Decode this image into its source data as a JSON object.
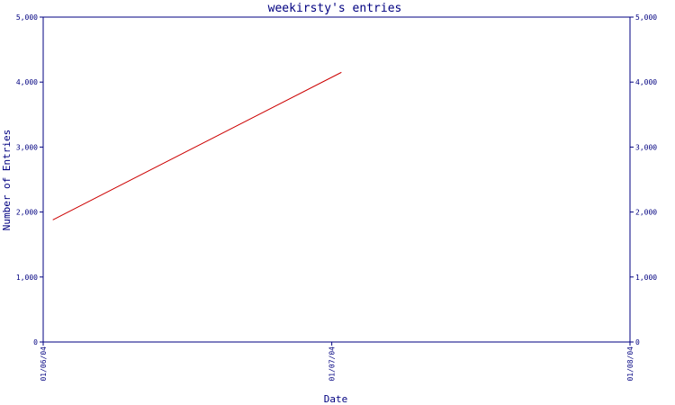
{
  "chart_data": {
    "type": "line",
    "title": "weekirsty's entries",
    "xlabel": "Date",
    "ylabel": "Number of Entries",
    "x_tick_labels": [
      "01/06/04",
      "01/07/04",
      "01/08/04"
    ],
    "y_tick_labels": [
      "0",
      "1,000",
      "2,000",
      "3,000",
      "4,000",
      "5,000"
    ],
    "y_ticks": [
      0,
      1000,
      2000,
      3000,
      4000,
      5000
    ],
    "ylim": [
      0,
      5000
    ],
    "xlim": [
      "2004-06-01",
      "2004-08-01"
    ],
    "series": [
      {
        "x": [
          "2004-06-02",
          "2004-07-02"
        ],
        "values": [
          1880,
          4150
        ]
      }
    ],
    "grid": false,
    "legend": "none"
  },
  "colors": {
    "axis": "#000080",
    "line": "#cc0000",
    "text": "#000080",
    "background": "#ffffff"
  }
}
